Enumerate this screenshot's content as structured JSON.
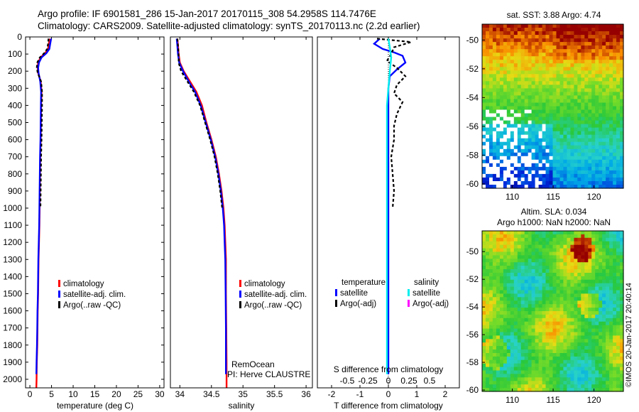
{
  "header": {
    "line1": "Argo profile: IF 6901581_286 15-Jan-2017 20170115_308 54.2958S 114.7476E",
    "line2": "Climatology: CARS2009. Satellite-adjusted climatology: synTS_20170113.nc (2.2d earlier)"
  },
  "side_stamp": "©IMOS 20-Jan-2017 20:40:14",
  "chart_data": [
    {
      "type": "line",
      "id": "temperature",
      "xlabel": "temperature (deg C)",
      "xlim": [
        -1,
        31
      ],
      "ylim": [
        2050,
        0
      ],
      "x_ticks": [
        "0",
        "5",
        "10",
        "15",
        "20",
        "25",
        "30"
      ],
      "y_ticks": [
        "0",
        "100",
        "200",
        "300",
        "400",
        "500",
        "600",
        "700",
        "800",
        "900",
        "1000",
        "1100",
        "1200",
        "1300",
        "1400",
        "1500",
        "1600",
        "1700",
        "1800",
        "1900",
        "2000"
      ],
      "legend": [
        "climatology",
        "satellite-adj. clim.",
        "Argo(..raw -QC)"
      ],
      "legend_colors": [
        "#ff0000",
        "#0000ff",
        "#000000"
      ],
      "series": [
        {
          "name": "climatology",
          "color": "#ff0000",
          "points": [
            [
              4.6,
              10
            ],
            [
              4.4,
              40
            ],
            [
              4.2,
              70
            ],
            [
              3.5,
              95
            ],
            [
              2.5,
              120
            ],
            [
              1.9,
              150
            ],
            [
              1.8,
              180
            ],
            [
              1.9,
              210
            ],
            [
              2.5,
              260
            ],
            [
              2.7,
              320
            ],
            [
              2.6,
              400
            ],
            [
              2.55,
              500
            ],
            [
              2.5,
              600
            ],
            [
              2.4,
              700
            ],
            [
              2.35,
              800
            ],
            [
              2.3,
              900
            ],
            [
              2.25,
              1000
            ],
            [
              2.2,
              1100
            ],
            [
              2.1,
              1200
            ],
            [
              2.0,
              1300
            ],
            [
              1.95,
              1400
            ],
            [
              1.9,
              1500
            ],
            [
              1.8,
              1600
            ],
            [
              1.75,
              1700
            ],
            [
              1.7,
              1800
            ],
            [
              1.6,
              1900
            ],
            [
              1.55,
              2000
            ],
            [
              1.5,
              2048
            ]
          ]
        },
        {
          "name": "satellite-adj. clim.",
          "color": "#0000ff",
          "points": [
            [
              4.9,
              10
            ],
            [
              4.7,
              40
            ],
            [
              4.5,
              70
            ],
            [
              3.8,
              95
            ],
            [
              2.7,
              120
            ],
            [
              2.1,
              150
            ],
            [
              1.9,
              180
            ],
            [
              2.0,
              210
            ],
            [
              2.4,
              260
            ],
            [
              2.6,
              320
            ],
            [
              2.55,
              400
            ],
            [
              2.5,
              500
            ],
            [
              2.45,
              600
            ],
            [
              2.35,
              700
            ],
            [
              2.3,
              800
            ],
            [
              2.25,
              900
            ],
            [
              2.2,
              1000
            ],
            [
              2.15,
              1100
            ],
            [
              2.05,
              1200
            ],
            [
              1.95,
              1300
            ],
            [
              1.9,
              1400
            ],
            [
              1.85,
              1500
            ],
            [
              1.75,
              1600
            ],
            [
              1.7,
              1700
            ],
            [
              1.65,
              1800
            ],
            [
              1.55,
              1900
            ],
            [
              1.5,
              1970
            ]
          ]
        },
        {
          "name": "Argo(..raw -QC)",
          "color": "#000000",
          "dashed": true,
          "points": [
            [
              4.3,
              10
            ],
            [
              4.2,
              40
            ],
            [
              4.0,
              70
            ],
            [
              3.3,
              95
            ],
            [
              2.3,
              120
            ],
            [
              1.7,
              150
            ],
            [
              1.6,
              180
            ],
            [
              1.8,
              210
            ],
            [
              2.6,
              260
            ],
            [
              2.8,
              320
            ],
            [
              2.8,
              400
            ],
            [
              2.75,
              500
            ],
            [
              2.7,
              600
            ],
            [
              2.6,
              700
            ],
            [
              2.55,
              800
            ],
            [
              2.5,
              900
            ],
            [
              2.45,
              1000
            ]
          ]
        }
      ]
    },
    {
      "type": "line",
      "id": "salinity",
      "xlabel": "salinity",
      "xlim": [
        33.85,
        36.1
      ],
      "ylim": [
        2050,
        0
      ],
      "x_ticks": [
        "34",
        "34.5",
        "35",
        "35.5",
        "36"
      ],
      "legend": [
        "climatology",
        "satellite-adj. clim.",
        "Argo(..raw -QC)"
      ],
      "legend_colors": [
        "#ff0000",
        "#0000ff",
        "#000000"
      ],
      "annotation": [
        "RemOcean",
        "PI: Herve CLAUSTRE"
      ],
      "series": [
        {
          "name": "climatology",
          "color": "#ff0000",
          "points": [
            [
              33.96,
              10
            ],
            [
              33.97,
              50
            ],
            [
              33.98,
              100
            ],
            [
              34.0,
              150
            ],
            [
              34.06,
              200
            ],
            [
              34.16,
              260
            ],
            [
              34.26,
              320
            ],
            [
              34.35,
              400
            ],
            [
              34.42,
              500
            ],
            [
              34.5,
              600
            ],
            [
              34.57,
              700
            ],
            [
              34.62,
              800
            ],
            [
              34.66,
              900
            ],
            [
              34.69,
              1000
            ],
            [
              34.71,
              1100
            ],
            [
              34.72,
              1200
            ],
            [
              34.73,
              1300
            ],
            [
              34.73,
              1500
            ],
            [
              34.735,
              1700
            ],
            [
              34.74,
              1900
            ],
            [
              34.74,
              2048
            ]
          ]
        },
        {
          "name": "satellite-adj. clim.",
          "color": "#0000ff",
          "points": [
            [
              33.95,
              10
            ],
            [
              33.96,
              50
            ],
            [
              33.97,
              100
            ],
            [
              33.99,
              150
            ],
            [
              34.05,
              200
            ],
            [
              34.14,
              260
            ],
            [
              34.24,
              320
            ],
            [
              34.33,
              400
            ],
            [
              34.41,
              500
            ],
            [
              34.49,
              600
            ],
            [
              34.56,
              700
            ],
            [
              34.61,
              800
            ],
            [
              34.65,
              900
            ],
            [
              34.68,
              1000
            ],
            [
              34.7,
              1100
            ],
            [
              34.71,
              1200
            ],
            [
              34.72,
              1300
            ],
            [
              34.725,
              1500
            ],
            [
              34.73,
              1700
            ],
            [
              34.73,
              1900
            ],
            [
              34.73,
              1970
            ]
          ]
        },
        {
          "name": "Argo(..raw -QC)",
          "color": "#000000",
          "dashed": true,
          "points": [
            [
              33.96,
              10
            ],
            [
              33.97,
              50
            ],
            [
              33.98,
              100
            ],
            [
              33.98,
              150
            ],
            [
              34.02,
              200
            ],
            [
              34.12,
              260
            ],
            [
              34.22,
              320
            ],
            [
              34.32,
              400
            ],
            [
              34.4,
              500
            ],
            [
              34.48,
              600
            ],
            [
              34.55,
              700
            ],
            [
              34.6,
              800
            ],
            [
              34.64,
              900
            ],
            [
              34.67,
              1000
            ]
          ]
        }
      ]
    },
    {
      "type": "line",
      "id": "difference",
      "xlabel": "T difference from climatology",
      "xlabel_top": "S difference from climatology",
      "xlim": [
        -2.5,
        2.5
      ],
      "ylim": [
        2050,
        0
      ],
      "x_ticks": [
        "-2",
        "-1",
        "0",
        "1",
        "2"
      ],
      "s_ticks": [
        "-0.5",
        "-0.25",
        "0",
        "0.25",
        "0.5"
      ],
      "legend_headers": [
        "temperature",
        "salinity"
      ],
      "legend": [
        "satellite",
        "Argo(-adj)",
        "satellite",
        "Argo(-adj)"
      ],
      "legend_colors": [
        "#0000ff",
        "#000000",
        "#00eeee",
        "#ff00ff"
      ],
      "series": [
        {
          "name": "satellite (T)",
          "color": "#0000ff",
          "points": [
            [
              -0.3,
              10
            ],
            [
              -0.5,
              40
            ],
            [
              -0.2,
              70
            ],
            [
              0.2,
              90
            ],
            [
              0.5,
              110
            ],
            [
              0.6,
              150
            ],
            [
              0.3,
              190
            ],
            [
              0.05,
              230
            ],
            [
              0.0,
              300
            ],
            [
              0.0,
              400
            ],
            [
              0.0,
              600
            ],
            [
              0.0,
              800
            ],
            [
              0.0,
              1000
            ],
            [
              0.0,
              1500
            ],
            [
              0.0,
              1970
            ]
          ]
        },
        {
          "name": "Argo (T)",
          "color": "#000000",
          "dashed": true,
          "points": [
            [
              -0.4,
              10
            ],
            [
              0.8,
              30
            ],
            [
              0.2,
              60
            ],
            [
              0.1,
              100
            ],
            [
              -0.05,
              140
            ],
            [
              0.3,
              180
            ],
            [
              0.6,
              230
            ],
            [
              0.3,
              280
            ],
            [
              0.2,
              330
            ],
            [
              0.5,
              380
            ],
            [
              0.3,
              450
            ],
            [
              0.2,
              520
            ],
            [
              0.2,
              600
            ],
            [
              0.1,
              700
            ],
            [
              0.15,
              800
            ],
            [
              0.2,
              900
            ],
            [
              0.15,
              1000
            ]
          ]
        },
        {
          "name": "satellite (S)",
          "color": "#00eeee",
          "points": [
            [
              0.0,
              10
            ],
            [
              0.05,
              60
            ],
            [
              0.1,
              120
            ],
            [
              0.05,
              200
            ],
            [
              0.0,
              300
            ],
            [
              -0.05,
              400
            ],
            [
              -0.05,
              600
            ],
            [
              -0.05,
              800
            ],
            [
              -0.05,
              1000
            ],
            [
              -0.05,
              1500
            ],
            [
              -0.05,
              1970
            ]
          ]
        }
      ]
    }
  ],
  "maps": [
    {
      "id": "sst",
      "title": "sat. SST: 3.88 Argo: 4.74",
      "x_ticks": [
        "110",
        "115",
        "120"
      ],
      "y_ticks": [
        "-50",
        "-52",
        "-54",
        "-56",
        "-58",
        "-60"
      ]
    },
    {
      "id": "sla",
      "title_line1": "Altim. SLA: 0.034",
      "title_line2": "Argo h1000: NaN h2000: NaN",
      "x_ticks": [
        "110",
        "115",
        "120"
      ],
      "y_ticks": [
        "-50",
        "-52",
        "-54",
        "-56",
        "-58",
        "-60"
      ]
    }
  ]
}
